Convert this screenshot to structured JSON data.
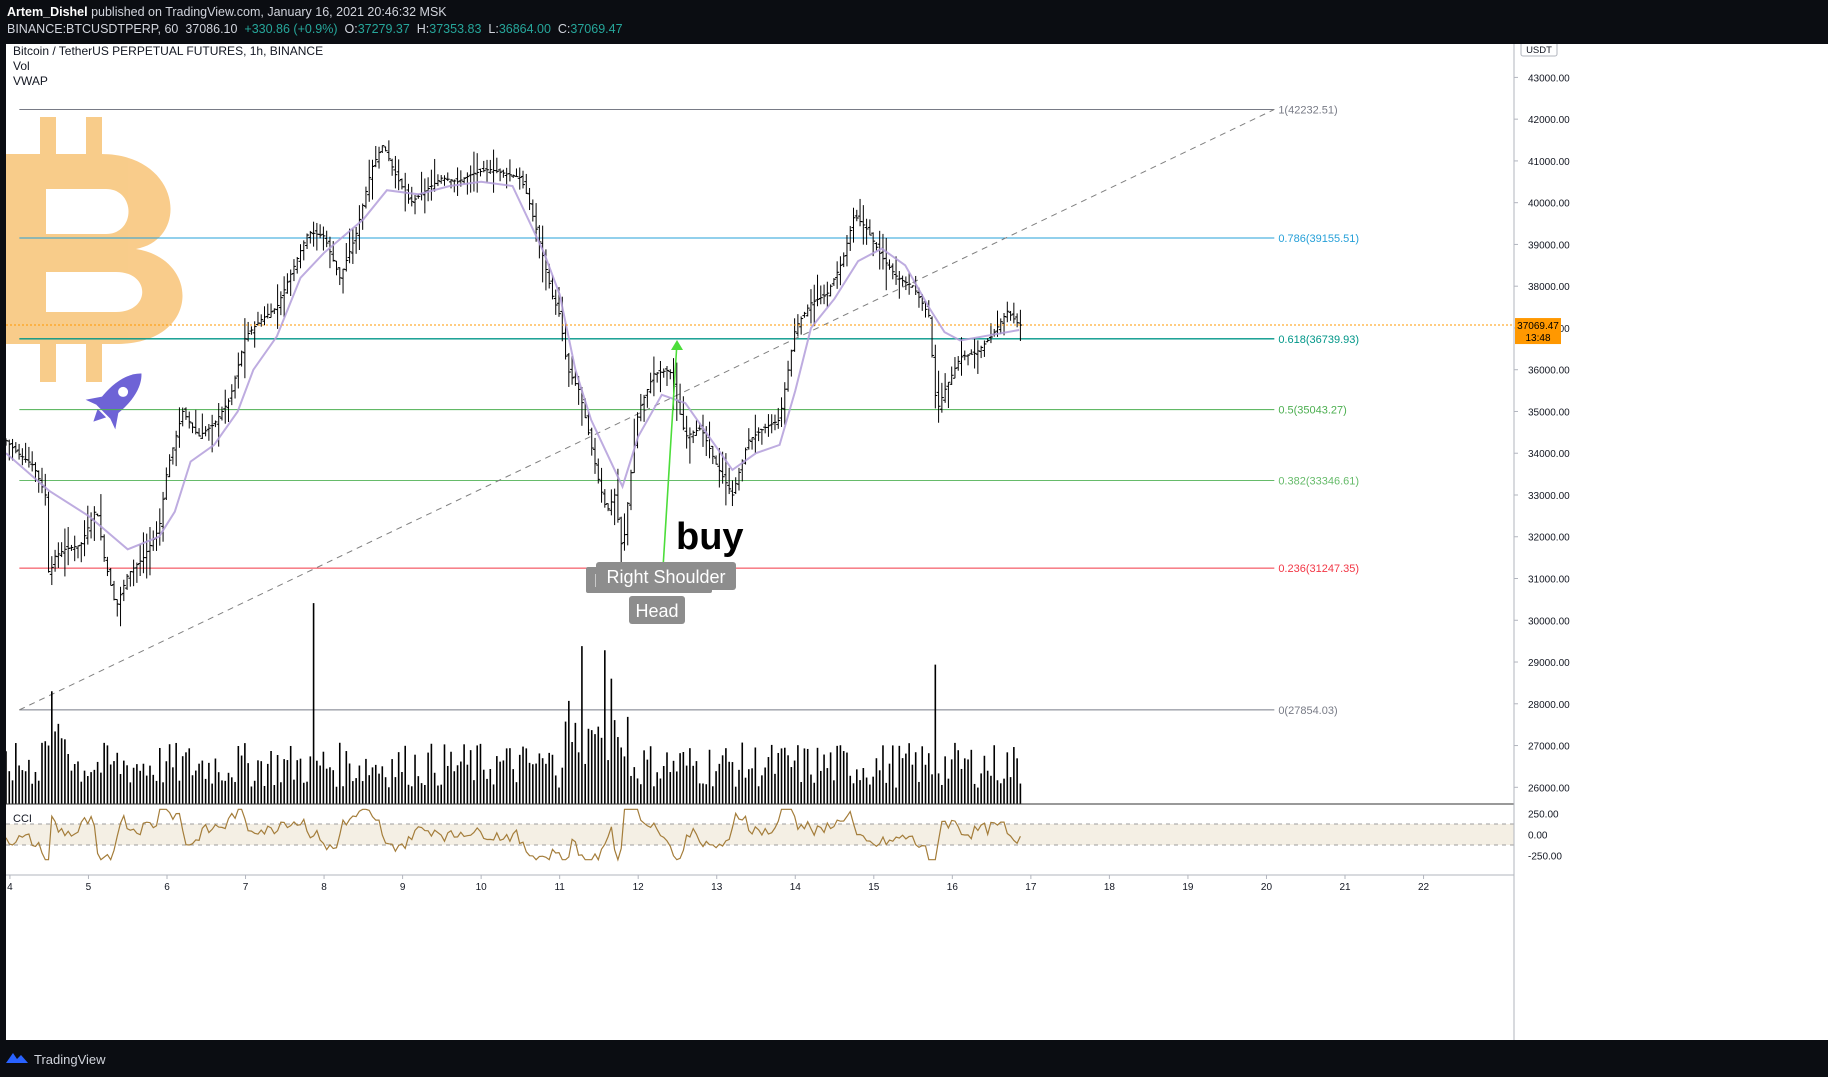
{
  "header": {
    "author": "Artem_Dishel",
    "published_text": " published on TradingView.com, January 16, 2021 20:46:32 MSK",
    "symbol_line": "BINANCE:BTCUSDTPERP, 60",
    "last": "37086.10",
    "change": "+330.86 (+0.9%)",
    "o_label": "O:",
    "o": "37279.37",
    "h_label": "H:",
    "h": "37353.83",
    "l_label": "L:",
    "l": "36864.00",
    "c_label": "C:",
    "c": "37069.47"
  },
  "legend": {
    "title": "Bitcoin / TetherUS PERPETUAL FUTURES, 1h, BINANCE",
    "vol": "Vol",
    "vwap": "VWAP",
    "cci": "CCI"
  },
  "price_axis": {
    "currency": "USDT",
    "ticks": [
      "43000.00",
      "42000.00",
      "41000.00",
      "40000.00",
      "39000.00",
      "38000.00",
      "37000.00",
      "36000.00",
      "35000.00",
      "34000.00",
      "33000.00",
      "32000.00",
      "31000.00",
      "30000.00",
      "29000.00",
      "28000.00",
      "27000.00",
      "26000.00"
    ],
    "last_price_label": "37069.47",
    "countdown_label": "13:48"
  },
  "cci_axis": {
    "ticks": [
      "250.00",
      "0.00",
      "-250.00"
    ]
  },
  "time_axis": {
    "labels": [
      "4",
      "5",
      "6",
      "7",
      "8",
      "9",
      "10",
      "11",
      "12",
      "13",
      "14",
      "15",
      "16",
      "17",
      "18",
      "19",
      "20",
      "21",
      "22"
    ]
  },
  "fib_levels": [
    {
      "ratio": 1,
      "price": 42232.51,
      "label": "1(42232.51)",
      "color": "#787b86"
    },
    {
      "ratio": 0.786,
      "price": 39155.51,
      "label": "0.786(39155.51)",
      "color": "#26a0d8"
    },
    {
      "ratio": 0.618,
      "price": 36739.93,
      "label": "0.618(36739.93)",
      "color": "#009688"
    },
    {
      "ratio": 0.5,
      "price": 35043.27,
      "label": "0.5(35043.27)",
      "color": "#4caf50"
    },
    {
      "ratio": 0.382,
      "price": 33346.61,
      "label": "0.382(33346.61)",
      "color": "#66bb6a"
    },
    {
      "ratio": 0.236,
      "price": 31247.35,
      "label": "0.236(31247.35)",
      "color": "#f23645"
    },
    {
      "ratio": 0,
      "price": 27854.03,
      "label": "0(27854.03)",
      "color": "#787b86"
    }
  ],
  "annotations": {
    "buy": "buy",
    "right_shoulder": "Right Shoulder",
    "left_shoulder_partial": "L",
    "head": "Head"
  },
  "footer": {
    "brand": "TradingView"
  },
  "colors": {
    "candle": "#000000",
    "vwap": "#b39ddb",
    "cci": "#a47d3a",
    "cci_band": "#f4efe4",
    "last_price": "#ff9800",
    "bitcoin_logo": "#f8c77e",
    "rocket": "#6e63d6",
    "arrow": "#4cdd3a"
  },
  "chart_data": {
    "type": "candlestick",
    "title": "Bitcoin / TetherUS PERPETUAL FUTURES, 1h, BINANCE",
    "y_unit": "USDT",
    "ylim": [
      25600,
      43800
    ],
    "x_range_days": [
      3.95,
      23.05
    ],
    "price_path": [
      [
        3.95,
        34300
      ],
      [
        4.1,
        34000
      ],
      [
        4.3,
        33700
      ],
      [
        4.45,
        33000
      ],
      [
        4.5,
        30800
      ],
      [
        4.55,
        31500
      ],
      [
        4.7,
        31700
      ],
      [
        4.9,
        31800
      ],
      [
        5.1,
        32700
      ],
      [
        5.2,
        31500
      ],
      [
        5.35,
        30300
      ],
      [
        5.5,
        31100
      ],
      [
        5.7,
        31500
      ],
      [
        5.9,
        32200
      ],
      [
        6.0,
        33600
      ],
      [
        6.2,
        35000
      ],
      [
        6.4,
        34400
      ],
      [
        6.6,
        34700
      ],
      [
        6.8,
        35300
      ],
      [
        7.0,
        36800
      ],
      [
        7.2,
        37200
      ],
      [
        7.4,
        37500
      ],
      [
        7.6,
        38400
      ],
      [
        7.8,
        39300
      ],
      [
        8.0,
        39200
      ],
      [
        8.2,
        38200
      ],
      [
        8.4,
        39200
      ],
      [
        8.6,
        40800
      ],
      [
        8.75,
        41400
      ],
      [
        8.9,
        40700
      ],
      [
        9.1,
        40000
      ],
      [
        9.3,
        40300
      ],
      [
        9.5,
        40600
      ],
      [
        9.7,
        40500
      ],
      [
        9.9,
        40700
      ],
      [
        10.1,
        40800
      ],
      [
        10.3,
        40700
      ],
      [
        10.5,
        40600
      ],
      [
        10.6,
        40100
      ],
      [
        10.75,
        39000
      ],
      [
        10.9,
        37800
      ],
      [
        11.0,
        37300
      ],
      [
        11.1,
        36000
      ],
      [
        11.25,
        35500
      ],
      [
        11.4,
        34200
      ],
      [
        11.5,
        33300
      ],
      [
        11.6,
        32600
      ],
      [
        11.7,
        33000
      ],
      [
        11.8,
        31600
      ],
      [
        11.9,
        33400
      ],
      [
        12.0,
        35000
      ],
      [
        12.2,
        35900
      ],
      [
        12.4,
        36000
      ],
      [
        12.6,
        34400
      ],
      [
        12.8,
        34600
      ],
      [
        13.0,
        33700
      ],
      [
        13.2,
        33000
      ],
      [
        13.4,
        34300
      ],
      [
        13.6,
        34600
      ],
      [
        13.8,
        34800
      ],
      [
        14.0,
        37000
      ],
      [
        14.2,
        37600
      ],
      [
        14.4,
        37800
      ],
      [
        14.6,
        38600
      ],
      [
        14.75,
        39700
      ],
      [
        14.9,
        39400
      ],
      [
        15.1,
        38700
      ],
      [
        15.3,
        38200
      ],
      [
        15.5,
        38000
      ],
      [
        15.7,
        37300
      ],
      [
        15.8,
        35000
      ],
      [
        15.9,
        35500
      ],
      [
        16.1,
        36300
      ],
      [
        16.3,
        36400
      ],
      [
        16.5,
        36800
      ],
      [
        16.7,
        37400
      ],
      [
        16.85,
        37070
      ]
    ],
    "vwap_path": [
      [
        3.95,
        34000
      ],
      [
        4.5,
        33100
      ],
      [
        5.0,
        32500
      ],
      [
        5.5,
        31700
      ],
      [
        5.9,
        32000
      ],
      [
        6.1,
        32600
      ],
      [
        6.3,
        33800
      ],
      [
        6.6,
        34200
      ],
      [
        6.9,
        35000
      ],
      [
        7.1,
        36000
      ],
      [
        7.4,
        36800
      ],
      [
        7.7,
        38200
      ],
      [
        8.0,
        38800
      ],
      [
        8.5,
        39600
      ],
      [
        8.8,
        40300
      ],
      [
        9.2,
        40200
      ],
      [
        9.6,
        40400
      ],
      [
        10.0,
        40500
      ],
      [
        10.4,
        40400
      ],
      [
        10.6,
        39600
      ],
      [
        10.8,
        38800
      ],
      [
        11.0,
        37800
      ],
      [
        11.2,
        36000
      ],
      [
        11.4,
        34800
      ],
      [
        11.6,
        34000
      ],
      [
        11.8,
        33200
      ],
      [
        12.0,
        34400
      ],
      [
        12.3,
        35400
      ],
      [
        12.6,
        35200
      ],
      [
        12.9,
        34400
      ],
      [
        13.2,
        33600
      ],
      [
        13.5,
        34000
      ],
      [
        13.8,
        34200
      ],
      [
        14.0,
        35500
      ],
      [
        14.2,
        37000
      ],
      [
        14.5,
        37700
      ],
      [
        14.8,
        38600
      ],
      [
        15.1,
        38900
      ],
      [
        15.4,
        38500
      ],
      [
        15.7,
        37500
      ],
      [
        15.9,
        36900
      ],
      [
        16.1,
        36700
      ],
      [
        16.4,
        36800
      ],
      [
        16.85,
        36950
      ]
    ],
    "volume_spikes": [
      {
        "day": 4.55,
        "relative": 0.55
      },
      {
        "day": 7.87,
        "relative": 0.98
      },
      {
        "day": 11.3,
        "relative": 0.77
      },
      {
        "day": 11.58,
        "relative": 0.75
      },
      {
        "day": 15.8,
        "relative": 0.68
      }
    ],
    "fibonacci_retracement": [
      {
        "level": "1",
        "price": 42232.51
      },
      {
        "level": "0.786",
        "price": 39155.51
      },
      {
        "level": "0.618",
        "price": 36739.93
      },
      {
        "level": "0.5",
        "price": 35043.27
      },
      {
        "level": "0.382",
        "price": 33346.61
      },
      {
        "level": "0.236",
        "price": 31247.35
      },
      {
        "level": "0",
        "price": 27854.03
      }
    ],
    "trendline": {
      "from": [
        4.12,
        27854.03
      ],
      "to": [
        20.1,
        42232.51
      ],
      "style": "dashed"
    },
    "last_price": 37069.47,
    "cci_ylim": [
      -300,
      300
    ],
    "cci_band": [
      -100,
      100
    ],
    "grid": false,
    "legend": "top-left"
  }
}
